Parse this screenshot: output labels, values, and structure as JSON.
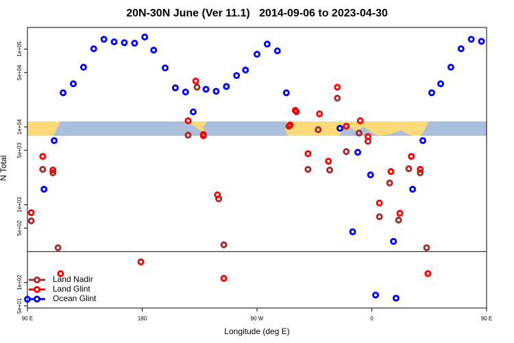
{
  "chart_data": {
    "type": "scatter",
    "title": "20N-30N June (Ver 11.1)   2014-09-06 to 2023-04-30",
    "x_label": "Longitude (deg E)",
    "y_label": "N Total",
    "log_y": true,
    "xlim": [
      90,
      450
    ],
    "xticks": [
      {
        "value": 90,
        "label": "90 E"
      },
      {
        "value": 180,
        "label": "180"
      },
      {
        "value": 270,
        "label": "90 W"
      },
      {
        "value": 360,
        "label": "0"
      },
      {
        "value": 450,
        "label": "90 E"
      }
    ],
    "ylim": [
      47,
      190000
    ],
    "yticks": [
      {
        "value": 50,
        "label": "5e+01"
      },
      {
        "value": 100,
        "label": "1e+02"
      },
      {
        "value": 500,
        "label": "5e+02"
      },
      {
        "value": 1000,
        "label": "1e+03"
      },
      {
        "value": 5000,
        "label": "5e+03"
      },
      {
        "value": 10000,
        "label": "1e+04"
      },
      {
        "value": 50000,
        "label": "5e+04"
      },
      {
        "value": 100000,
        "label": "1e+05"
      }
    ],
    "hline": 250,
    "legend": "bottom-left",
    "series": [
      {
        "name": "Land Nadir",
        "color": "#a52a2a",
        "x": [
          93,
          102,
          110,
          114,
          216,
          223,
          228,
          240,
          244,
          295,
          301,
          310,
          318,
          327,
          333,
          340,
          350,
          357,
          366,
          374,
          381,
          389,
          398,
          403
        ],
        "y": [
          620,
          2850,
          2570,
          280,
          7830,
          32400,
          7670,
          1190,
          305,
          10200,
          15600,
          2850,
          9220,
          2790,
          23400,
          4820,
          8340,
          6530,
          700,
          1900,
          634,
          2900,
          2570,
          280
        ]
      },
      {
        "name": "Land Glint",
        "color": "#ff0000",
        "x": [
          93,
          102,
          110,
          116,
          179,
          216,
          222,
          228,
          239,
          244,
          296,
          300,
          310,
          319,
          326,
          333,
          340,
          351,
          357,
          366,
          375,
          382,
          391,
          398,
          404
        ],
        "y": [
          790,
          4180,
          2790,
          130,
          184,
          12000,
          38900,
          8000,
          1340,
          113,
          10600,
          16300,
          4530,
          14700,
          3620,
          32400,
          10200,
          12000,
          7530,
          1050,
          2670,
          776,
          4180,
          2850,
          130
        ]
      },
      {
        "name": "Ocean Glint",
        "color": "#0000ff",
        "x": [
          90,
          103,
          111,
          118,
          126,
          134,
          142,
          150,
          158,
          166,
          174,
          182,
          189,
          198,
          206,
          214,
          220,
          230,
          238,
          246,
          254,
          261,
          270,
          278,
          286,
          293,
          335,
          345,
          349,
          359,
          363,
          377,
          379,
          392,
          400,
          407,
          414,
          422,
          430,
          438,
          446
        ],
        "y": [
          61,
          1580,
          6670,
          27500,
          35900,
          58500,
          101000,
          134000,
          124000,
          121000,
          119000,
          143000,
          97000,
          57300,
          31800,
          28100,
          15600,
          30500,
          28700,
          33100,
          45800,
          53800,
          85900,
          116000,
          95000,
          27500,
          9600,
          449,
          4720,
          2420,
          69,
          338,
          63,
          1580,
          6670,
          27500,
          35900,
          58500,
          101000,
          134000,
          126000
        ]
      }
    ]
  }
}
